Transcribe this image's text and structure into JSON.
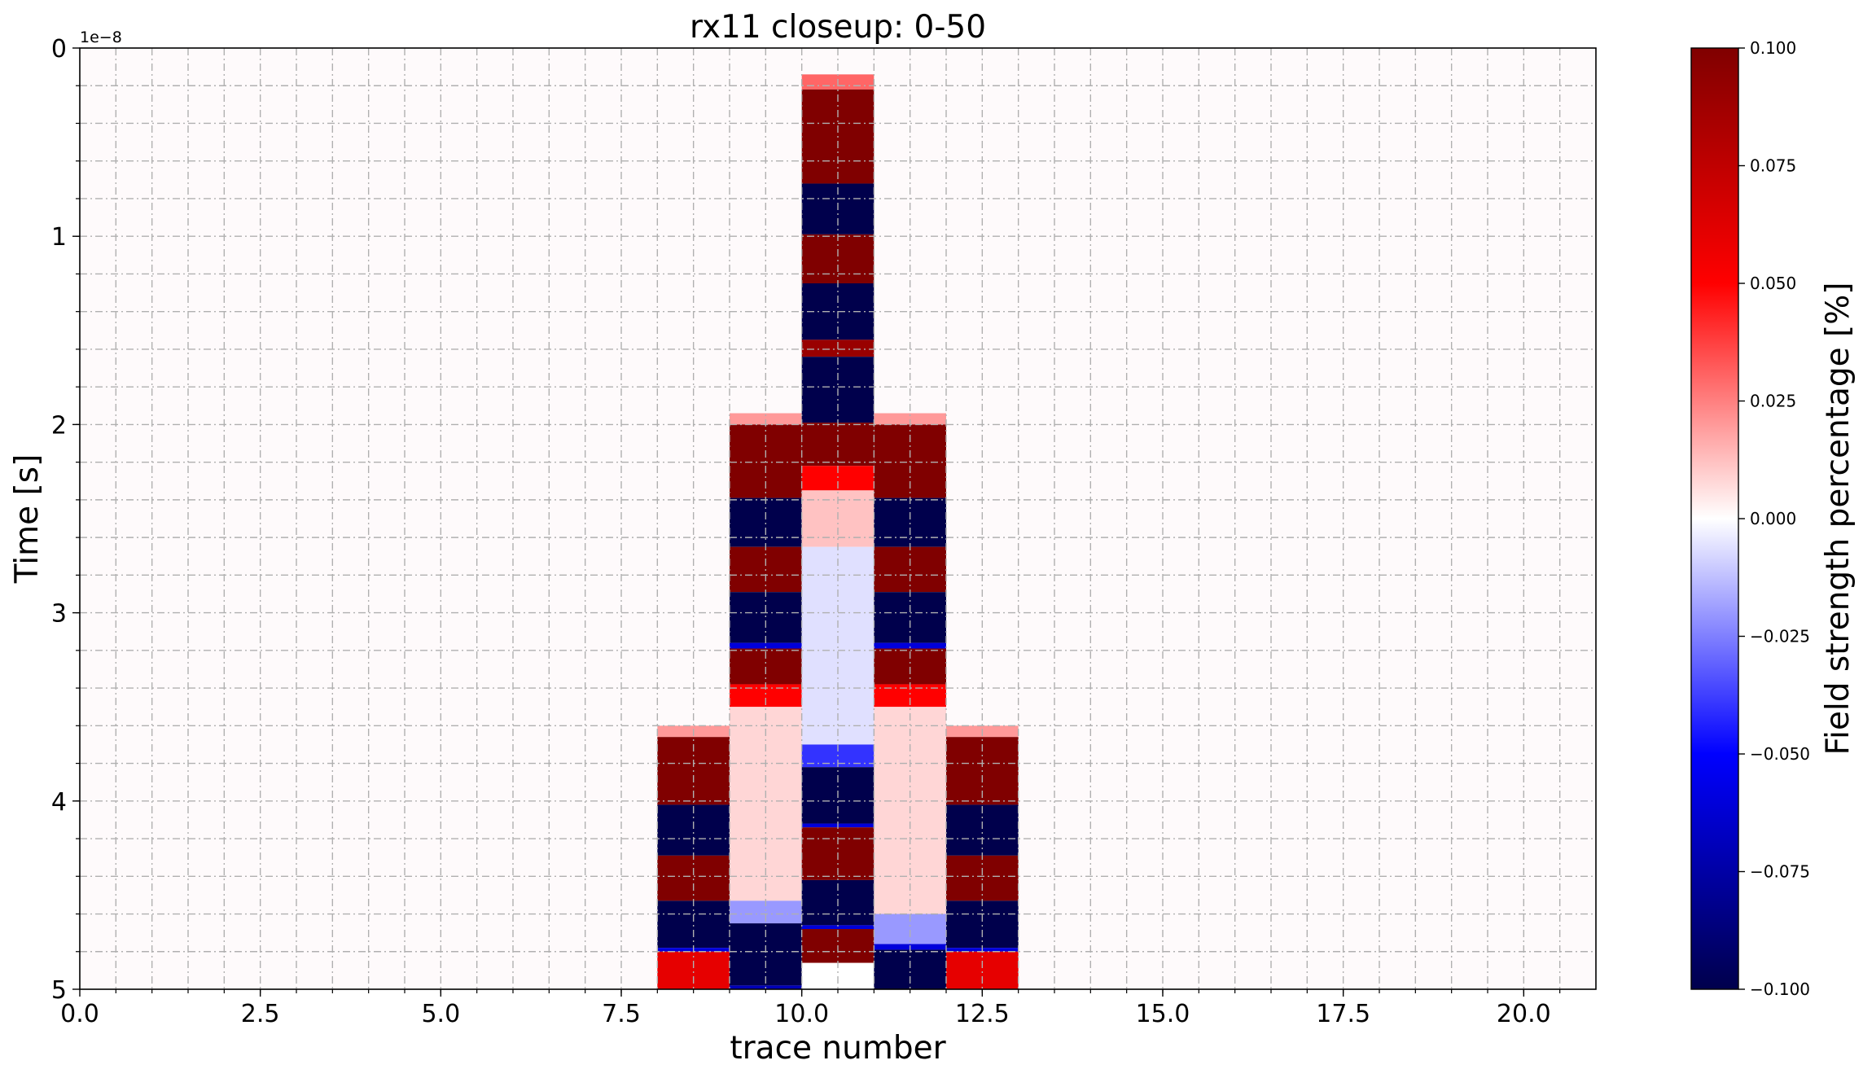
{
  "chart_data": {
    "type": "heatmap",
    "title": "rx11 closeup: 0-50",
    "xlabel": "trace number",
    "ylabel": "Time [s]",
    "y_offset_label": "1e−8",
    "colorbar_label": "Field strength percentage [%]",
    "colormap": "seismic",
    "vmin": -0.1,
    "vmax": 0.1,
    "xlim": [
      0.0,
      21.0
    ],
    "ylim": [
      5,
      0
    ],
    "x_ticks": [
      "0.0",
      "2.5",
      "5.0",
      "7.5",
      "10.0",
      "12.5",
      "15.0",
      "17.5",
      "20.0"
    ],
    "y_ticks": [
      "0",
      "1",
      "2",
      "3",
      "4",
      "5"
    ],
    "colorbar_ticks": [
      "0.100",
      "0.075",
      "0.050",
      "0.025",
      "0.000",
      "−0.025",
      "−0.050",
      "−0.075",
      "−0.100"
    ],
    "grid": true,
    "traces": [
      {
        "x0": 8,
        "x1": 9,
        "segments": [
          {
            "t0": 3.6,
            "t1": 3.66,
            "v": 0.02
          },
          {
            "t0": 3.66,
            "t1": 4.02,
            "v": 0.1
          },
          {
            "t0": 4.02,
            "t1": 4.29,
            "v": -0.1
          },
          {
            "t0": 4.29,
            "t1": 4.53,
            "v": 0.1
          },
          {
            "t0": 4.53,
            "t1": 4.78,
            "v": -0.1
          },
          {
            "t0": 4.78,
            "t1": 4.8,
            "v": -0.06
          },
          {
            "t0": 4.8,
            "t1": 5.0,
            "v": 0.06
          }
        ]
      },
      {
        "x0": 9,
        "x1": 10,
        "segments": [
          {
            "t0": 1.94,
            "t1": 2.0,
            "v": 0.02
          },
          {
            "t0": 2.0,
            "t1": 2.39,
            "v": 0.1
          },
          {
            "t0": 2.39,
            "t1": 2.65,
            "v": -0.1
          },
          {
            "t0": 2.65,
            "t1": 2.89,
            "v": 0.1
          },
          {
            "t0": 2.89,
            "t1": 3.16,
            "v": -0.1
          },
          {
            "t0": 3.16,
            "t1": 3.19,
            "v": -0.06
          },
          {
            "t0": 3.19,
            "t1": 3.38,
            "v": 0.1
          },
          {
            "t0": 3.38,
            "t1": 3.5,
            "v": 0.05
          },
          {
            "t0": 3.5,
            "t1": 4.53,
            "v": 0.008
          },
          {
            "t0": 4.53,
            "t1": 4.65,
            "v": -0.02
          },
          {
            "t0": 4.65,
            "t1": 4.98,
            "v": -0.1
          },
          {
            "t0": 4.98,
            "t1": 5.0,
            "v": -0.07
          }
        ]
      },
      {
        "x0": 10,
        "x1": 11,
        "segments": [
          {
            "t0": 0.14,
            "t1": 0.22,
            "v": 0.03
          },
          {
            "t0": 0.22,
            "t1": 0.72,
            "v": 0.1
          },
          {
            "t0": 0.72,
            "t1": 0.99,
            "v": -0.1
          },
          {
            "t0": 0.99,
            "t1": 1.25,
            "v": 0.1
          },
          {
            "t0": 1.25,
            "t1": 1.55,
            "v": -0.1
          },
          {
            "t0": 1.55,
            "t1": 1.64,
            "v": 0.09
          },
          {
            "t0": 1.64,
            "t1": 1.99,
            "v": -0.1
          },
          {
            "t0": 1.99,
            "t1": 2.22,
            "v": 0.1
          },
          {
            "t0": 2.22,
            "t1": 2.35,
            "v": 0.05
          },
          {
            "t0": 2.35,
            "t1": 2.65,
            "v": 0.012
          },
          {
            "t0": 2.65,
            "t1": 3.7,
            "v": -0.006
          },
          {
            "t0": 3.7,
            "t1": 3.82,
            "v": -0.04
          },
          {
            "t0": 3.82,
            "t1": 4.12,
            "v": -0.1
          },
          {
            "t0": 4.12,
            "t1": 4.14,
            "v": -0.06
          },
          {
            "t0": 4.14,
            "t1": 4.42,
            "v": 0.1
          },
          {
            "t0": 4.42,
            "t1": 4.66,
            "v": -0.1
          },
          {
            "t0": 4.66,
            "t1": 4.68,
            "v": -0.06
          },
          {
            "t0": 4.68,
            "t1": 4.86,
            "v": 0.1
          },
          {
            "t0": 4.86,
            "t1": 5.0,
            "v": 0.0
          }
        ]
      },
      {
        "x0": 11,
        "x1": 12,
        "segments": [
          {
            "t0": 1.94,
            "t1": 2.0,
            "v": 0.02
          },
          {
            "t0": 2.0,
            "t1": 2.39,
            "v": 0.1
          },
          {
            "t0": 2.39,
            "t1": 2.65,
            "v": -0.1
          },
          {
            "t0": 2.65,
            "t1": 2.89,
            "v": 0.1
          },
          {
            "t0": 2.89,
            "t1": 3.16,
            "v": -0.1
          },
          {
            "t0": 3.16,
            "t1": 3.19,
            "v": -0.06
          },
          {
            "t0": 3.19,
            "t1": 3.38,
            "v": 0.1
          },
          {
            "t0": 3.38,
            "t1": 3.5,
            "v": 0.05
          },
          {
            "t0": 3.5,
            "t1": 4.6,
            "v": 0.008
          },
          {
            "t0": 4.6,
            "t1": 4.76,
            "v": -0.02
          },
          {
            "t0": 4.76,
            "t1": 4.79,
            "v": -0.06
          },
          {
            "t0": 4.79,
            "t1": 5.0,
            "v": -0.1
          }
        ]
      },
      {
        "x0": 12,
        "x1": 13,
        "segments": [
          {
            "t0": 3.6,
            "t1": 3.66,
            "v": 0.02
          },
          {
            "t0": 3.66,
            "t1": 4.02,
            "v": 0.1
          },
          {
            "t0": 4.02,
            "t1": 4.29,
            "v": -0.1
          },
          {
            "t0": 4.29,
            "t1": 4.53,
            "v": 0.1
          },
          {
            "t0": 4.53,
            "t1": 4.78,
            "v": -0.1
          },
          {
            "t0": 4.78,
            "t1": 4.8,
            "v": -0.06
          },
          {
            "t0": 4.8,
            "t1": 5.0,
            "v": 0.06
          }
        ]
      }
    ]
  }
}
